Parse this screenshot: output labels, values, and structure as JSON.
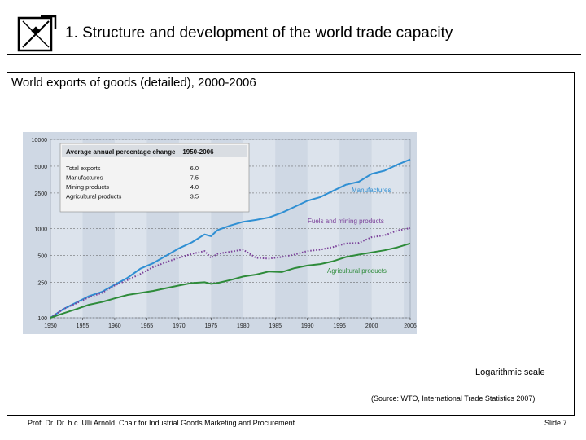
{
  "slide": {
    "title": "1. Structure and development of the world trade capacity",
    "panel_title": "World exports of goods (detailed), 2000-2006",
    "scale_note": "Logarithmic scale",
    "source_note": "(Source: WTO, International Trade Statistics 2007)",
    "footer_left": "Prof. Dr. Dr. h.c. Ulli Arnold, Chair for Industrial Goods Marketing and Procurement",
    "footer_right": "Slide 7"
  },
  "chart_data": {
    "type": "line",
    "log_scale": true,
    "grid": true,
    "ylim": [
      100,
      10000
    ],
    "xlim": [
      1950,
      2006
    ],
    "y_ticks": [
      "10000",
      "5000",
      "2500",
      "1000",
      "500",
      "250",
      "100"
    ],
    "x_ticks": [
      "1950",
      "1955",
      "1960",
      "1965",
      "1970",
      "1975",
      "1980",
      "1985",
      "1990",
      "1995",
      "2000",
      "2006"
    ],
    "legend_placement": "top-left",
    "colors": {
      "manufactures": "#2f8fd3",
      "fuels": "#7a3f99",
      "agri": "#2e8b3a",
      "grid": "#555555",
      "band": "#e8edf3"
    },
    "inset_table": {
      "heading": "Average annual percentage change – 1950-2006",
      "rows": [
        {
          "label": "Total exports",
          "value": "6.0"
        },
        {
          "label": "Manufactures",
          "value": "7.5"
        },
        {
          "label": "Mining products",
          "value": "4.0"
        },
        {
          "label": "Agricultural products",
          "value": "3.5"
        }
      ]
    },
    "series": [
      {
        "name": "Manufactures",
        "key": "manufactures",
        "style": "solid",
        "x": [
          1950,
          1952,
          1954,
          1956,
          1958,
          1960,
          1962,
          1964,
          1966,
          1968,
          1970,
          1972,
          1974,
          1975,
          1976,
          1978,
          1980,
          1982,
          1984,
          1986,
          1988,
          1990,
          1992,
          1994,
          1996,
          1998,
          2000,
          2002,
          2004,
          2006
        ],
        "y": [
          100,
          125,
          148,
          175,
          195,
          235,
          280,
          355,
          410,
          495,
          600,
          700,
          860,
          820,
          960,
          1080,
          1190,
          1250,
          1330,
          1500,
          1750,
          2050,
          2250,
          2650,
          3100,
          3350,
          4100,
          4450,
          5200,
          5950
        ]
      },
      {
        "name": "Fuels and mining products",
        "key": "fuels",
        "style": "dotted",
        "x": [
          1950,
          1952,
          1954,
          1956,
          1958,
          1960,
          1962,
          1964,
          1966,
          1968,
          1970,
          1972,
          1974,
          1975,
          1976,
          1978,
          1980,
          1982,
          1984,
          1986,
          1988,
          1990,
          1992,
          1994,
          1996,
          1998,
          2000,
          2002,
          2004,
          2006
        ],
        "y": [
          100,
          125,
          145,
          170,
          190,
          230,
          265,
          310,
          370,
          420,
          470,
          520,
          560,
          470,
          520,
          550,
          580,
          470,
          460,
          480,
          510,
          560,
          580,
          620,
          680,
          690,
          800,
          840,
          950,
          1010
        ]
      },
      {
        "name": "Agricultural products",
        "key": "agri",
        "style": "solid",
        "x": [
          1950,
          1952,
          1954,
          1956,
          1958,
          1960,
          1962,
          1964,
          1966,
          1968,
          1970,
          1972,
          1974,
          1975,
          1976,
          1978,
          1980,
          1982,
          1984,
          1986,
          1988,
          1990,
          1992,
          1994,
          1996,
          1998,
          2000,
          2002,
          2004,
          2006
        ],
        "y": [
          100,
          112,
          125,
          140,
          150,
          165,
          180,
          190,
          200,
          215,
          230,
          245,
          250,
          240,
          245,
          265,
          290,
          305,
          330,
          325,
          360,
          385,
          400,
          430,
          480,
          510,
          540,
          570,
          615,
          680
        ]
      }
    ]
  }
}
